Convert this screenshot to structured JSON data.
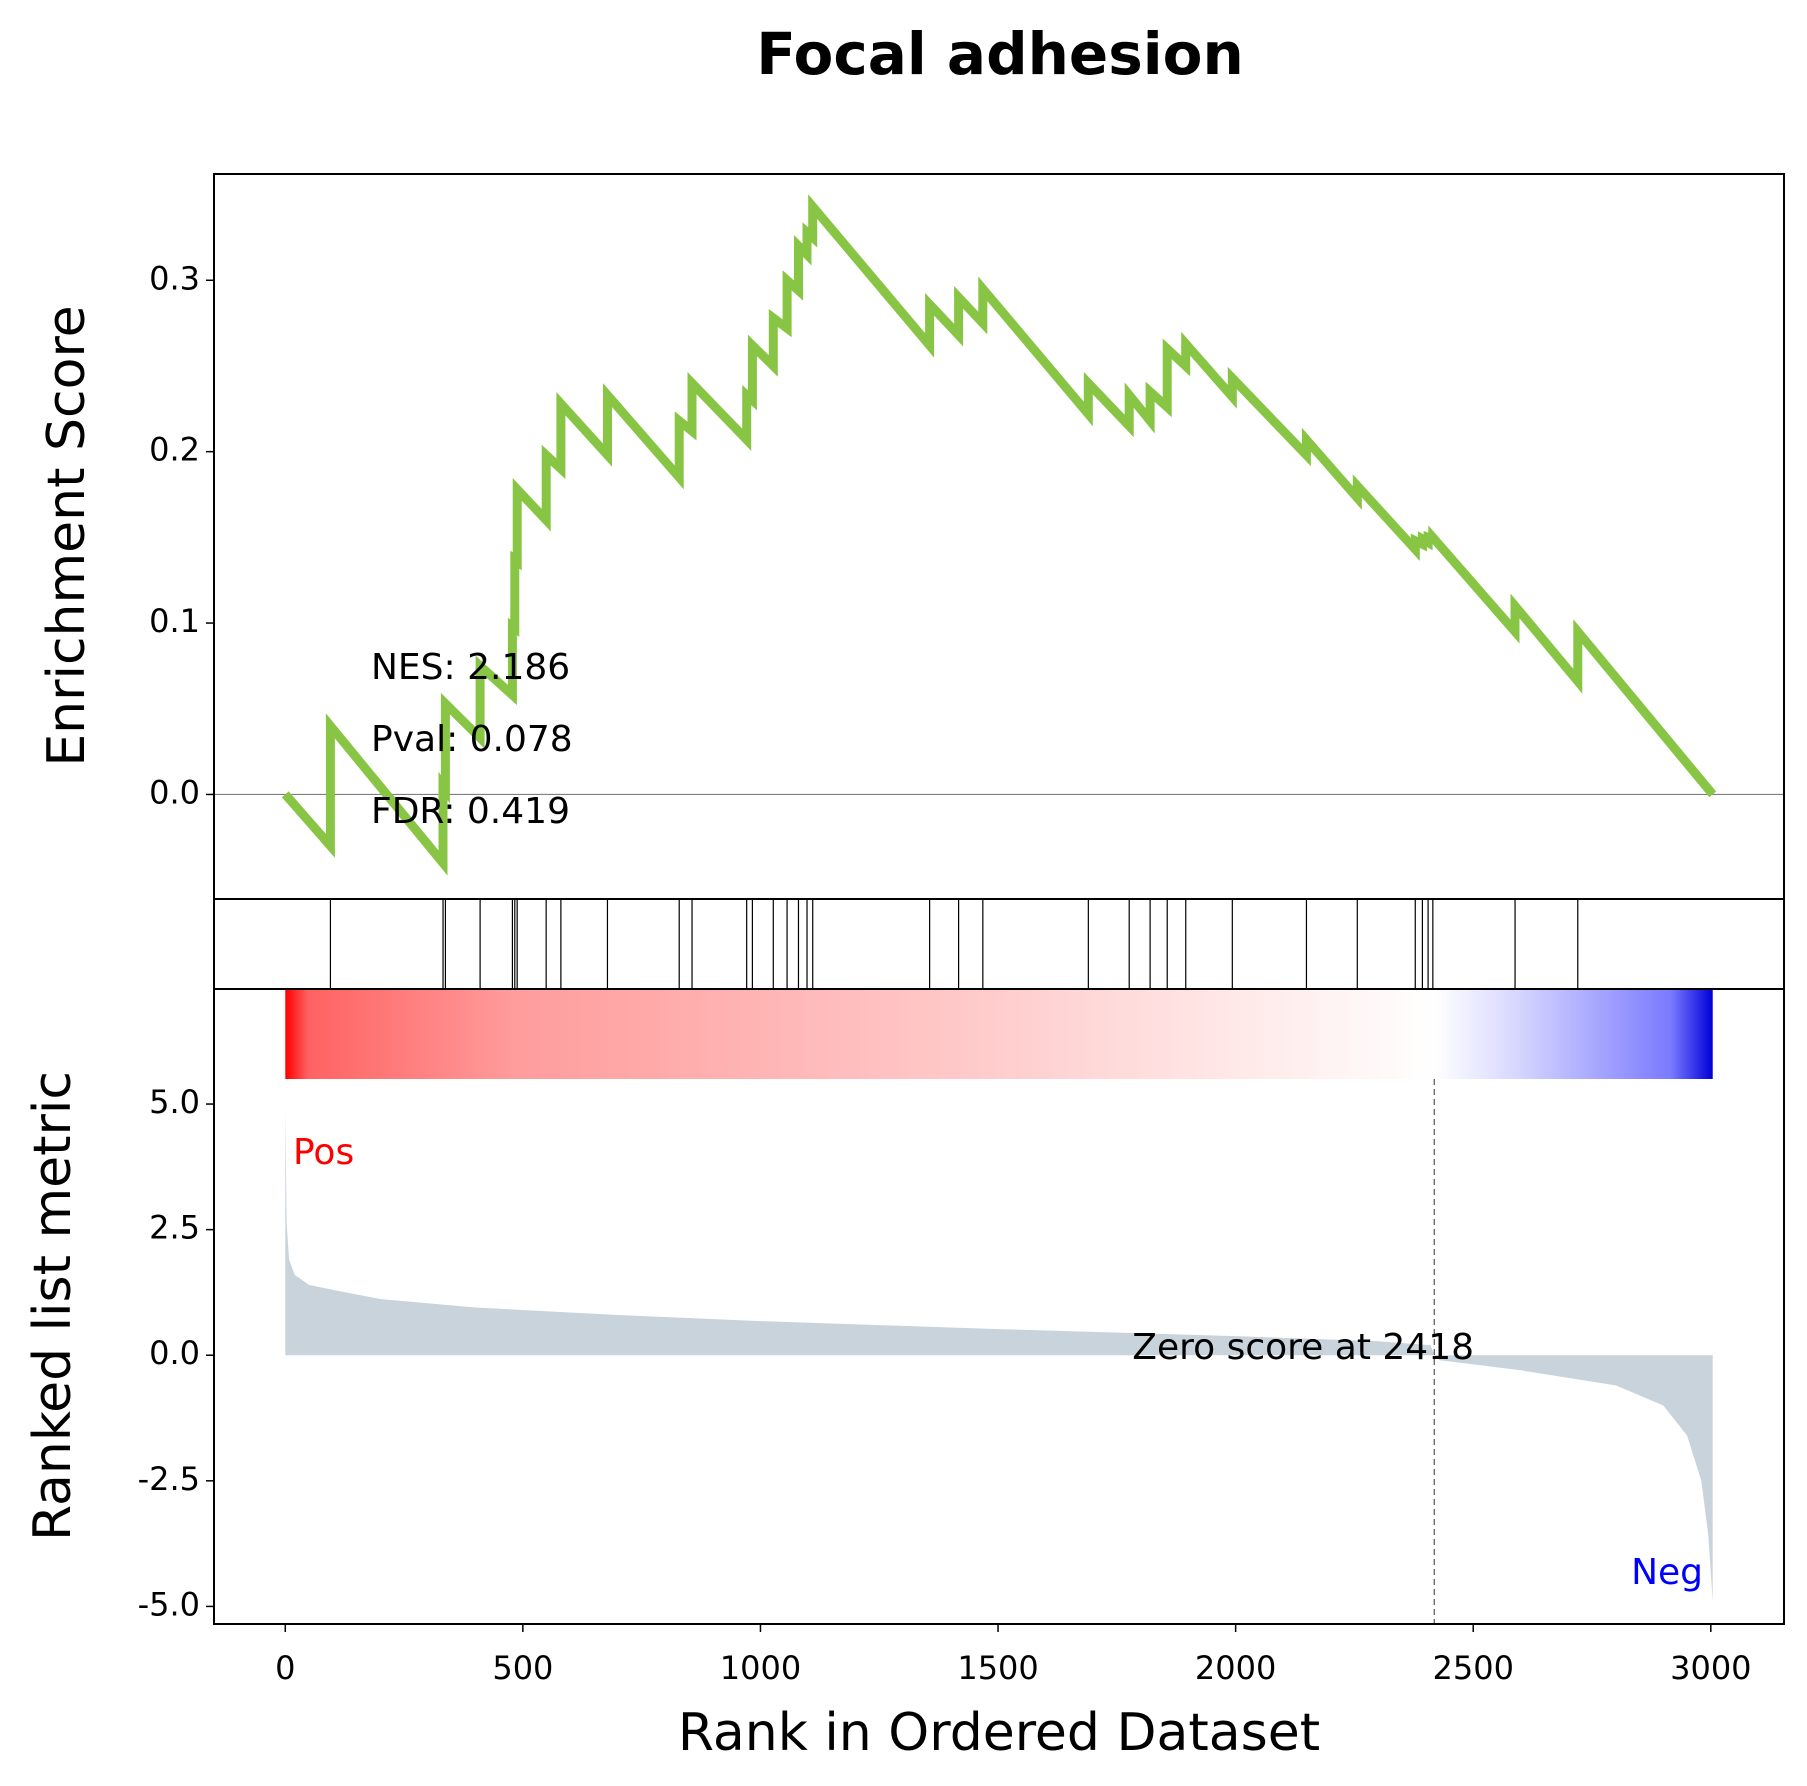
{
  "chart_data": [
    {
      "type": "line",
      "title": "Focal adhesion",
      "ylabel": "Enrichment Score",
      "color": "#88c544",
      "x": [
        0,
        95,
        95,
        332,
        332,
        337,
        337,
        410,
        410,
        478,
        478,
        483,
        483,
        488,
        488,
        549,
        549,
        580,
        580,
        678,
        678,
        829,
        829,
        856,
        856,
        971,
        971,
        983,
        983,
        1027,
        1027,
        1056,
        1056,
        1080,
        1080,
        1098,
        1098,
        1110,
        1110,
        1356,
        1356,
        1417,
        1417,
        1468,
        1468,
        1690,
        1690,
        1776,
        1776,
        1820,
        1820,
        1856,
        1856,
        1895,
        1895,
        1993,
        1993,
        2149,
        2149,
        2256,
        2256,
        2378,
        2378,
        2393,
        2393,
        2405,
        2405,
        2415,
        2415,
        2588,
        2588,
        2720,
        2720,
        3004
      ],
      "values": [
        0,
        -0.03,
        0.04,
        -0.04,
        0.005,
        0.003,
        0.053,
        0.033,
        0.075,
        0.058,
        0.098,
        0.097,
        0.137,
        0.136,
        0.178,
        0.16,
        0.198,
        0.19,
        0.228,
        0.198,
        0.233,
        0.185,
        0.218,
        0.212,
        0.24,
        0.207,
        0.233,
        0.23,
        0.262,
        0.25,
        0.278,
        0.272,
        0.3,
        0.294,
        0.32,
        0.315,
        0.328,
        0.325,
        0.343,
        0.262,
        0.286,
        0.268,
        0.29,
        0.275,
        0.295,
        0.222,
        0.24,
        0.215,
        0.233,
        0.218,
        0.235,
        0.226,
        0.26,
        0.25,
        0.263,
        0.232,
        0.243,
        0.198,
        0.207,
        0.173,
        0.18,
        0.143,
        0.148,
        0.146,
        0.149,
        0.147,
        0.15,
        0.149,
        0.15,
        0.095,
        0.11,
        0.066,
        0.095,
        0
      ],
      "hits": [
        95,
        332,
        337,
        410,
        478,
        483,
        488,
        549,
        580,
        678,
        829,
        856,
        971,
        983,
        1027,
        1056,
        1080,
        1098,
        1110,
        1356,
        1417,
        1468,
        1690,
        1776,
        1820,
        1856,
        1895,
        1993,
        2149,
        2256,
        2378,
        2393,
        2405,
        2415,
        2588,
        2720
      ],
      "xlim": [
        -150,
        3154
      ],
      "ylim": [
        -0.061,
        0.362
      ],
      "yticks": [
        {
          "value": 0,
          "label": "0.0"
        },
        0.1,
        0.2,
        0.3
      ],
      "annotations": [
        "NES: 2.186",
        "Pval: 0.078",
        "FDR: 0.419"
      ]
    },
    {
      "type": "area",
      "ylabel": "Ranked list metric",
      "xlabel": "Rank in Ordered Dataset",
      "color": "#c9d3dc",
      "x": [
        0,
        3,
        8,
        20,
        50,
        100,
        200,
        400,
        700,
        1000,
        1500,
        2000,
        2300,
        2410,
        2418,
        2430,
        2600,
        2800,
        2900,
        2950,
        2980,
        2995,
        3004
      ],
      "values": [
        4.9,
        2.6,
        1.9,
        1.6,
        1.4,
        1.3,
        1.12,
        0.95,
        0.8,
        0.68,
        0.52,
        0.38,
        0.28,
        0.2,
        0,
        -0.1,
        -0.3,
        -0.6,
        -1.0,
        -1.6,
        -2.5,
        -3.6,
        -4.9
      ],
      "xlim": [
        -150,
        3154
      ],
      "ylim": [
        -5.35,
        7.29
      ],
      "xticks": [
        0,
        500,
        1000,
        1500,
        2000,
        2500,
        3000
      ],
      "yticks": [
        {
          "value": -5,
          "label": "-5.0"
        },
        {
          "value": -2.5,
          "label": "-2.5"
        },
        {
          "value": 0,
          "label": "0.0"
        },
        {
          "value": 2.5,
          "label": "2.5"
        },
        {
          "value": 5,
          "label": "5.0"
        }
      ],
      "pos_label": "Pos",
      "neg_label": "Neg",
      "zero_rank": 2418,
      "zero_text": "Zero score at 2418"
    }
  ]
}
